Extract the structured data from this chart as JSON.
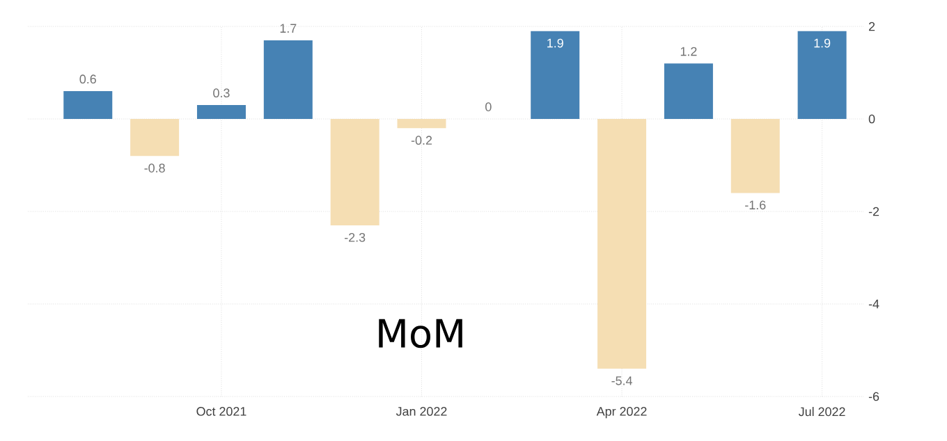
{
  "chart_data": {
    "type": "bar",
    "categories": [
      null,
      null,
      "Oct 2021",
      null,
      null,
      "Jan 2022",
      null,
      null,
      "Apr 2022",
      null,
      null,
      "Jul 2022"
    ],
    "values": [
      0.6,
      -0.8,
      0.3,
      1.7,
      -2.3,
      -0.2,
      0,
      1.9,
      -5.4,
      1.2,
      -1.6,
      1.9
    ],
    "colors": [
      "#4682b4",
      "#f5deb3",
      "#4682b4",
      "#4682b4",
      "#f5deb3",
      "#f5deb3",
      "#f5deb3",
      "#4682b4",
      "#f5deb3",
      "#4682b4",
      "#f5deb3",
      "#4682b4"
    ],
    "ylim": [
      -6,
      2
    ],
    "yticks": [
      -6,
      -4,
      -2,
      0,
      2
    ],
    "grid": true,
    "data_labels": true,
    "annotations": [
      "MoM"
    ]
  }
}
